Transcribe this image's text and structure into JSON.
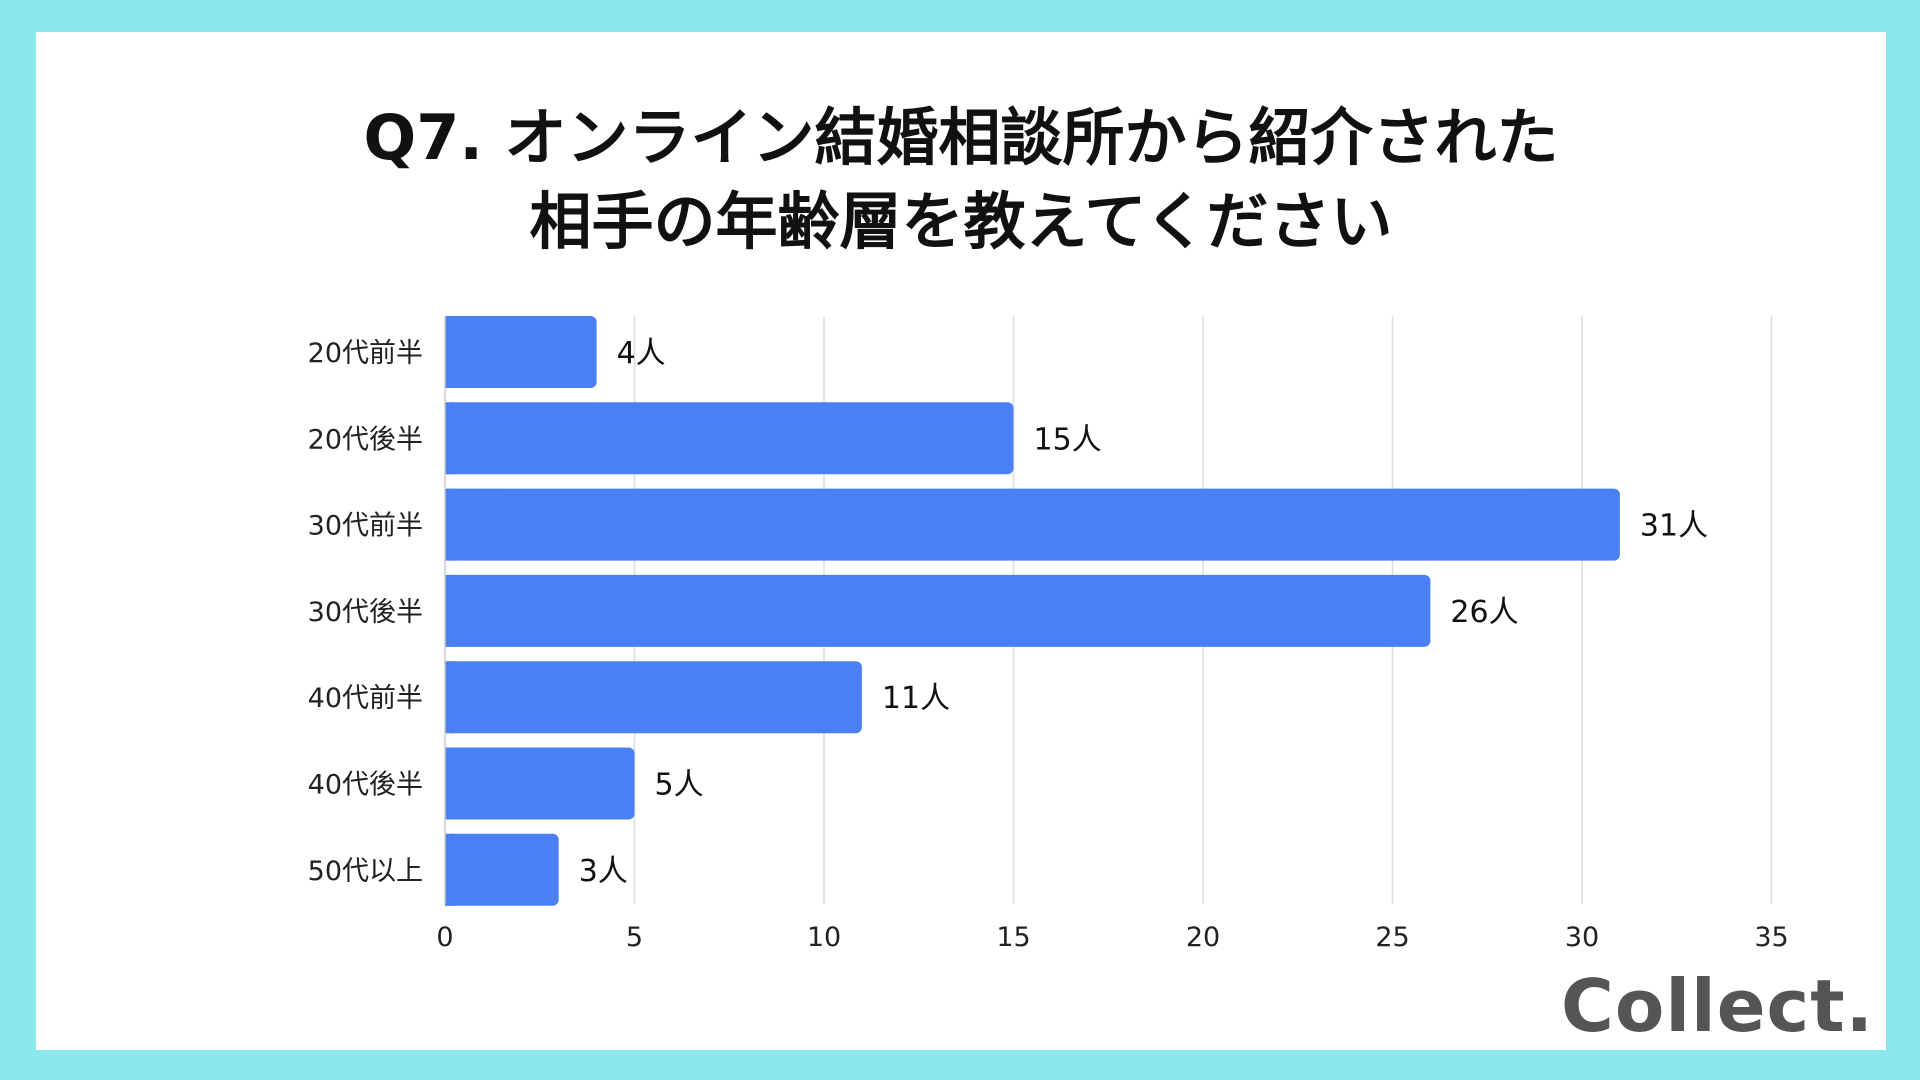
{
  "title": {
    "line1": "Q7. オンライン結婚相談所から紹介された",
    "line2": "相手の年齢層を教えてください"
  },
  "colors": {
    "background": "#8be8ec",
    "bar": "#4b80f5",
    "grid": "#dddddd"
  },
  "logo_text": "Collect.",
  "value_suffix": "人",
  "chart_data": {
    "type": "bar",
    "orientation": "horizontal",
    "categories": [
      "20代前半",
      "20代後半",
      "30代前半",
      "30代後半",
      "40代前半",
      "40代後半",
      "50代以上"
    ],
    "values": [
      4,
      15,
      31,
      26,
      11,
      5,
      3
    ],
    "xlim": [
      0,
      35
    ],
    "xticks": [
      0,
      5,
      10,
      15,
      20,
      25,
      30,
      35
    ],
    "grid": true,
    "legend": "none"
  }
}
